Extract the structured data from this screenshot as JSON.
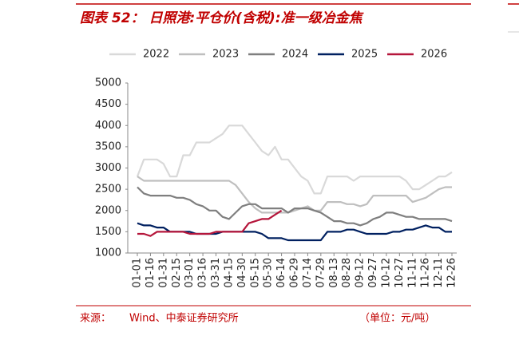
{
  "chart_data": {
    "type": "line",
    "title": "图表 52： 日照港:平仓价(含税):准一级冶金焦",
    "source_label": "来源：",
    "source": "Wind、中泰证券研究所",
    "unit": "（单位：元/吨）",
    "categories": [
      "01-01",
      null,
      "01-16",
      null,
      "01-31",
      null,
      "02-15",
      null,
      "03-01",
      null,
      "03-16",
      null,
      "03-31",
      null,
      "04-15",
      null,
      "04-30",
      null,
      "05-15",
      null,
      "05-30",
      null,
      "06-14",
      null,
      "06-29",
      null,
      "07-14",
      null,
      "07-29",
      null,
      "08-13",
      null,
      "08-28",
      null,
      "09-12",
      null,
      "09-27",
      null,
      "10-12",
      null,
      "10-27",
      null,
      "11-11",
      null,
      "11-26",
      null,
      "12-11",
      null,
      "12-26"
    ],
    "ylim": [
      1000,
      5000
    ],
    "yticks": [
      1000,
      1500,
      2000,
      2500,
      3000,
      3500,
      4000,
      4500,
      5000
    ],
    "grid": false,
    "legend": "top",
    "series": [
      {
        "name": "2022",
        "color": "#d9d9d9",
        "values": [
          2800,
          3200,
          3200,
          3200,
          3100,
          2800,
          2800,
          3300,
          3300,
          3600,
          3600,
          3600,
          3700,
          3800,
          4000,
          4000,
          4000,
          3800,
          3600,
          3400,
          3300,
          3500,
          3200,
          3200,
          3000,
          2800,
          2700,
          2400,
          2400,
          2800,
          2800,
          2800,
          2800,
          2700,
          2800,
          2800,
          2800,
          2800,
          2800,
          2800,
          2800,
          2700,
          2500,
          2500,
          2600,
          2700,
          2800,
          2800,
          2900
        ]
      },
      {
        "name": "2023",
        "color": "#bfbfbf",
        "values": [
          2800,
          2700,
          2700,
          2700,
          2700,
          2700,
          2700,
          2700,
          2700,
          2700,
          2700,
          2700,
          2700,
          2700,
          2700,
          2600,
          2400,
          2200,
          2050,
          1950,
          1950,
          1950,
          1950,
          1950,
          2000,
          2050,
          2100,
          2000,
          2000,
          2200,
          2200,
          2200,
          2150,
          2150,
          2100,
          2150,
          2350,
          2350,
          2350,
          2350,
          2350,
          2350,
          2200,
          2250,
          2300,
          2400,
          2500,
          2550,
          2550
        ]
      },
      {
        "name": "2024",
        "color": "#7f7f7f",
        "values": [
          2550,
          2400,
          2350,
          2350,
          2350,
          2350,
          2300,
          2300,
          2250,
          2150,
          2100,
          2000,
          2000,
          1850,
          1800,
          1950,
          2100,
          2150,
          2150,
          2050,
          2050,
          2050,
          2050,
          1950,
          2050,
          2050,
          2050,
          2000,
          1950,
          1850,
          1750,
          1750,
          1700,
          1700,
          1650,
          1700,
          1800,
          1850,
          1950,
          1950,
          1900,
          1850,
          1850,
          1800,
          1800,
          1800,
          1800,
          1800,
          1750
        ]
      },
      {
        "name": "2025",
        "color": "#002060",
        "values": [
          1700,
          1650,
          1650,
          1600,
          1600,
          1500,
          1500,
          1500,
          1500,
          1450,
          1450,
          1450,
          1450,
          1500,
          1500,
          1500,
          1500,
          1500,
          1500,
          1450,
          1350,
          1350,
          1350,
          1300,
          1300,
          1300,
          1300,
          1300,
          1300,
          1500,
          1500,
          1500,
          1550,
          1550,
          1500,
          1450,
          1450,
          1450,
          1450,
          1500,
          1500,
          1550,
          1550,
          1600,
          1650,
          1600,
          1600,
          1500,
          1500
        ]
      },
      {
        "name": "2026",
        "color": "#b5163b",
        "values": [
          1450,
          1450,
          1400,
          1500,
          1500,
          1500,
          1500,
          1500,
          1450,
          1450,
          1450,
          1450,
          1500,
          1500,
          1500,
          1500,
          1500,
          1700,
          1750,
          1800,
          1800,
          1900,
          2000,
          null,
          null,
          null,
          null,
          null,
          null,
          null,
          null,
          null,
          null,
          null,
          null,
          null,
          null,
          null,
          null,
          null,
          null,
          null,
          null,
          null,
          null,
          null,
          null,
          null,
          null
        ]
      }
    ]
  }
}
